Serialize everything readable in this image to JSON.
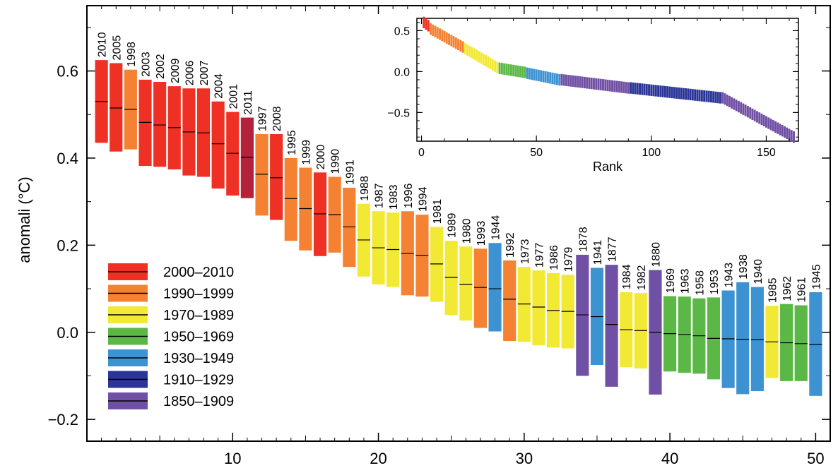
{
  "chart_data": [
    {
      "type": "bar",
      "subtype": "floating-range-with-median",
      "ylabel": "anomali  (°C)",
      "xlabel": "",
      "xlim": [
        0,
        51
      ],
      "ylim": [
        -0.25,
        0.75
      ],
      "xticks": [
        10,
        20,
        30,
        40,
        50
      ],
      "yticks": [
        -0.2,
        0.0,
        0.2,
        0.4,
        0.6
      ],
      "ytick_labels": [
        "−0.2",
        "0.0",
        "0.2",
        "0.4",
        "0.6"
      ],
      "legend_position": "bottom-left",
      "legend": [
        {
          "label": "2000–2010",
          "color": "#ee3124"
        },
        {
          "label": "1990–1999",
          "color": "#f58233"
        },
        {
          "label": "1970–1989",
          "color": "#f2e934"
        },
        {
          "label": "1950–1969",
          "color": "#5bb846"
        },
        {
          "label": "1930–1949",
          "color": "#3d92d1"
        },
        {
          "label": "1910–1929",
          "color": "#2a3597"
        },
        {
          "label": "1850–1909",
          "color": "#7050a4"
        }
      ],
      "bars": [
        {
          "rank": 1,
          "year": "2010",
          "low": 0.435,
          "mid": 0.53,
          "high": 0.625,
          "group": "2000–2010"
        },
        {
          "rank": 2,
          "year": "2005",
          "low": 0.415,
          "mid": 0.515,
          "high": 0.618,
          "group": "2000–2010"
        },
        {
          "rank": 3,
          "year": "1998",
          "low": 0.42,
          "mid": 0.512,
          "high": 0.603,
          "group": "1990–1999"
        },
        {
          "rank": 4,
          "year": "2003",
          "low": 0.382,
          "mid": 0.482,
          "high": 0.58,
          "group": "2000–2010"
        },
        {
          "rank": 5,
          "year": "2002",
          "low": 0.38,
          "mid": 0.476,
          "high": 0.575,
          "group": "2000–2010"
        },
        {
          "rank": 6,
          "year": "2009",
          "low": 0.374,
          "mid": 0.47,
          "high": 0.565,
          "group": "2000–2010"
        },
        {
          "rank": 7,
          "year": "2006",
          "low": 0.36,
          "mid": 0.46,
          "high": 0.56,
          "group": "2000–2010"
        },
        {
          "rank": 8,
          "year": "2007",
          "low": 0.357,
          "mid": 0.458,
          "high": 0.56,
          "group": "2000–2010"
        },
        {
          "rank": 9,
          "year": "2004",
          "low": 0.33,
          "mid": 0.433,
          "high": 0.53,
          "group": "2000–2010"
        },
        {
          "rank": 10,
          "year": "2001",
          "low": 0.314,
          "mid": 0.411,
          "high": 0.506,
          "group": "2000–2010"
        },
        {
          "rank": 11,
          "year": "2011",
          "low": 0.308,
          "mid": 0.402,
          "high": 0.493,
          "group": "2011"
        },
        {
          "rank": 12,
          "year": "1997",
          "low": 0.268,
          "mid": 0.363,
          "high": 0.455,
          "group": "1990–1999"
        },
        {
          "rank": 13,
          "year": "2008",
          "low": 0.258,
          "mid": 0.355,
          "high": 0.455,
          "group": "2000–2010"
        },
        {
          "rank": 14,
          "year": "1995",
          "low": 0.21,
          "mid": 0.307,
          "high": 0.4,
          "group": "1990–1999"
        },
        {
          "rank": 15,
          "year": "1999",
          "low": 0.188,
          "mid": 0.284,
          "high": 0.378,
          "group": "1990–1999"
        },
        {
          "rank": 16,
          "year": "2000",
          "low": 0.175,
          "mid": 0.272,
          "high": 0.367,
          "group": "2000–2010"
        },
        {
          "rank": 17,
          "year": "1990",
          "low": 0.183,
          "mid": 0.27,
          "high": 0.357,
          "group": "1990–1999"
        },
        {
          "rank": 18,
          "year": "1991",
          "low": 0.15,
          "mid": 0.242,
          "high": 0.332,
          "group": "1990–1999"
        },
        {
          "rank": 19,
          "year": "1988",
          "low": 0.128,
          "mid": 0.212,
          "high": 0.295,
          "group": "1970–1989"
        },
        {
          "rank": 20,
          "year": "1987",
          "low": 0.11,
          "mid": 0.194,
          "high": 0.278,
          "group": "1970–1989"
        },
        {
          "rank": 21,
          "year": "1983",
          "low": 0.104,
          "mid": 0.19,
          "high": 0.275,
          "group": "1970–1989"
        },
        {
          "rank": 22,
          "year": "1996",
          "low": 0.085,
          "mid": 0.181,
          "high": 0.278,
          "group": "1990–1999"
        },
        {
          "rank": 23,
          "year": "1994",
          "low": 0.082,
          "mid": 0.177,
          "high": 0.27,
          "group": "1990–1999"
        },
        {
          "rank": 24,
          "year": "1981",
          "low": 0.07,
          "mid": 0.157,
          "high": 0.242,
          "group": "1970–1989"
        },
        {
          "rank": 25,
          "year": "1989",
          "low": 0.04,
          "mid": 0.126,
          "high": 0.21,
          "group": "1970–1989"
        },
        {
          "rank": 26,
          "year": "1980",
          "low": 0.027,
          "mid": 0.11,
          "high": 0.197,
          "group": "1970–1989"
        },
        {
          "rank": 27,
          "year": "1993",
          "low": 0.01,
          "mid": 0.103,
          "high": 0.192,
          "group": "1990–1999"
        },
        {
          "rank": 28,
          "year": "1944",
          "low": 0.002,
          "mid": 0.1,
          "high": 0.205,
          "group": "1930–1949"
        },
        {
          "rank": 29,
          "year": "1992",
          "low": -0.02,
          "mid": 0.076,
          "high": 0.165,
          "group": "1990–1999"
        },
        {
          "rank": 30,
          "year": "1973",
          "low": -0.022,
          "mid": 0.065,
          "high": 0.15,
          "group": "1970–1989"
        },
        {
          "rank": 31,
          "year": "1977",
          "low": -0.03,
          "mid": 0.058,
          "high": 0.142,
          "group": "1970–1989"
        },
        {
          "rank": 32,
          "year": "1986",
          "low": -0.035,
          "mid": 0.05,
          "high": 0.136,
          "group": "1970–1989"
        },
        {
          "rank": 33,
          "year": "1979",
          "low": -0.037,
          "mid": 0.048,
          "high": 0.132,
          "group": "1970–1989"
        },
        {
          "rank": 34,
          "year": "1878",
          "low": -0.1,
          "mid": 0.04,
          "high": 0.178,
          "group": "1850–1909"
        },
        {
          "rank": 35,
          "year": "1941",
          "low": -0.075,
          "mid": 0.036,
          "high": 0.148,
          "group": "1930–1949"
        },
        {
          "rank": 36,
          "year": "1877",
          "low": -0.125,
          "mid": 0.018,
          "high": 0.155,
          "group": "1850–1909"
        },
        {
          "rank": 37,
          "year": "1984",
          "low": -0.08,
          "mid": 0.006,
          "high": 0.092,
          "group": "1970–1989"
        },
        {
          "rank": 38,
          "year": "1982",
          "low": -0.083,
          "mid": 0.004,
          "high": 0.09,
          "group": "1970–1989"
        },
        {
          "rank": 39,
          "year": "1880",
          "low": -0.143,
          "mid": 0.0,
          "high": 0.143,
          "group": "1850–1909"
        },
        {
          "rank": 40,
          "year": "1969",
          "low": -0.09,
          "mid": -0.003,
          "high": 0.083,
          "group": "1950–1969"
        },
        {
          "rank": 41,
          "year": "1963",
          "low": -0.093,
          "mid": -0.005,
          "high": 0.082,
          "group": "1950–1969"
        },
        {
          "rank": 42,
          "year": "1958",
          "low": -0.095,
          "mid": -0.008,
          "high": 0.078,
          "group": "1950–1969"
        },
        {
          "rank": 43,
          "year": "1953",
          "low": -0.108,
          "mid": -0.014,
          "high": 0.08,
          "group": "1950–1969"
        },
        {
          "rank": 44,
          "year": "1943",
          "low": -0.128,
          "mid": -0.015,
          "high": 0.096,
          "group": "1930–1949"
        },
        {
          "rank": 45,
          "year": "1938",
          "low": -0.142,
          "mid": -0.016,
          "high": 0.115,
          "group": "1930–1949"
        },
        {
          "rank": 46,
          "year": "1940",
          "low": -0.135,
          "mid": -0.017,
          "high": 0.104,
          "group": "1930–1949"
        },
        {
          "rank": 47,
          "year": "1985",
          "low": -0.105,
          "mid": -0.022,
          "high": 0.061,
          "group": "1970–1989"
        },
        {
          "rank": 48,
          "year": "1962",
          "low": -0.112,
          "mid": -0.024,
          "high": 0.065,
          "group": "1950–1969"
        },
        {
          "rank": 49,
          "year": "1961",
          "low": -0.112,
          "mid": -0.026,
          "high": 0.062,
          "group": "1950–1969"
        },
        {
          "rank": 50,
          "year": "1945",
          "low": -0.146,
          "mid": -0.028,
          "high": 0.092,
          "group": "1930–1949"
        }
      ],
      "group_colors": {
        "2000–2010": "#ee3124",
        "2011": "#b3213b",
        "1990–1999": "#f58233",
        "1970–1989": "#f2e934",
        "1950–1969": "#5bb846",
        "1930–1949": "#3d92d1",
        "1910–1929": "#2a3597",
        "1850–1909": "#7050a4"
      }
    },
    {
      "type": "bar",
      "subtype": "inset-ranked-anomalies",
      "xlabel": "Rank",
      "ylabel": "",
      "xlim": [
        -2,
        164
      ],
      "ylim": [
        -0.85,
        0.65
      ],
      "xticks": [
        0,
        50,
        100,
        150
      ],
      "yticks": [
        0.5,
        0.0,
        -0.5
      ],
      "ytick_labels": [
        "0.5",
        "0.0",
        "−0.5"
      ],
      "n": 162,
      "segments": [
        {
          "from": 1,
          "to": 3,
          "value_start": 0.6,
          "value_end": 0.56,
          "color": "#ee3124"
        },
        {
          "from": 4,
          "to": 18,
          "value_start": 0.52,
          "value_end": 0.3,
          "color": "#f58233"
        },
        {
          "from": 19,
          "to": 33,
          "value_start": 0.28,
          "value_end": 0.05,
          "color": "#f2e934"
        },
        {
          "from": 34,
          "to": 45,
          "value_start": 0.04,
          "value_end": -0.01,
          "color": "#5bb846"
        },
        {
          "from": 46,
          "to": 60,
          "value_start": -0.02,
          "value_end": -0.1,
          "color": "#3d92d1"
        },
        {
          "from": 61,
          "to": 90,
          "value_start": -0.1,
          "value_end": -0.2,
          "color": "#7050a4"
        },
        {
          "from": 91,
          "to": 130,
          "value_start": -0.2,
          "value_end": -0.32,
          "color": "#2a3597"
        },
        {
          "from": 131,
          "to": 162,
          "value_start": -0.32,
          "value_end": -0.8,
          "color": "#7050a4"
        }
      ]
    }
  ]
}
